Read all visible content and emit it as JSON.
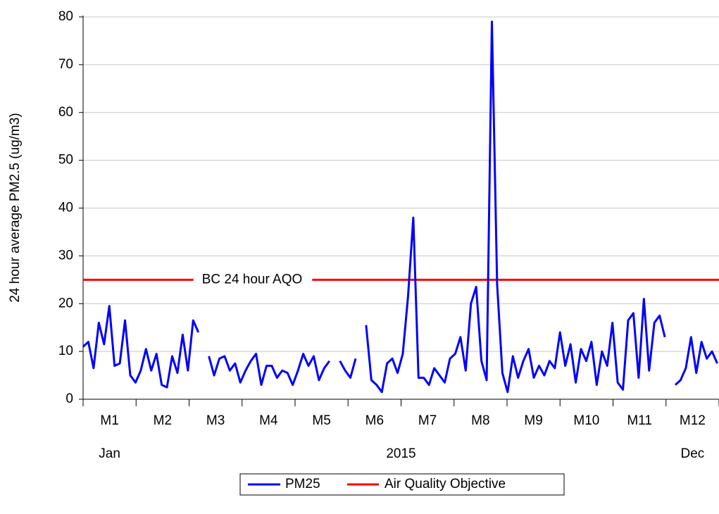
{
  "chart_data": {
    "type": "line",
    "y_axis_label": "24 hour average PM2.5 (ug/m3)",
    "x": [
      1,
      4,
      7,
      10,
      13,
      16,
      19,
      22,
      25,
      28,
      31,
      34,
      37,
      40,
      43,
      46,
      49,
      52,
      55,
      58,
      61,
      64,
      67,
      70,
      73,
      76,
      79,
      82,
      85,
      88,
      91,
      94,
      97,
      100,
      103,
      106,
      109,
      112,
      115,
      118,
      121,
      124,
      127,
      130,
      133,
      136,
      139,
      142,
      145,
      148,
      151,
      154,
      157,
      160,
      163,
      166,
      169,
      172,
      175,
      178,
      181,
      184,
      187,
      190,
      193,
      196,
      199,
      202,
      205,
      208,
      211,
      214,
      217,
      220,
      223,
      226,
      229,
      232,
      235,
      238,
      241,
      244,
      247,
      250,
      253,
      256,
      259,
      262,
      265,
      268,
      271,
      274,
      277,
      280,
      283,
      286,
      289,
      292,
      295,
      298,
      301,
      304,
      307,
      310,
      313,
      316,
      319,
      322,
      325,
      328,
      331,
      334,
      337,
      340,
      343,
      346,
      349,
      352,
      355,
      358,
      361,
      364
    ],
    "xlim": [
      1,
      365
    ],
    "month_labels": [
      "M1",
      "M2",
      "M3",
      "M4",
      "M5",
      "M6",
      "M7",
      "M8",
      "M9",
      "M10",
      "M11",
      "M12"
    ],
    "period_labels": [
      "Jan",
      "2015",
      "Dec"
    ],
    "series": [
      {
        "name": "PM25",
        "color": "#0000ff",
        "values": [
          11,
          12,
          6.5,
          16,
          11.5,
          19.5,
          7,
          7.5,
          16.5,
          5,
          3.5,
          6,
          10.5,
          6,
          9.5,
          3,
          2.5,
          9,
          5.5,
          13.5,
          6,
          16.5,
          14,
          null,
          9,
          5,
          8.5,
          9,
          6,
          7.5,
          3.5,
          6,
          8,
          9.5,
          3,
          7,
          7,
          4.5,
          6,
          5.5,
          3,
          6,
          9.5,
          7,
          9,
          4,
          6.5,
          8,
          null,
          8,
          6,
          4.5,
          8.5,
          null,
          15.5,
          4,
          3,
          1.5,
          7.5,
          8.5,
          5.5,
          9.5,
          21.5,
          38,
          4.5,
          4.5,
          3,
          6.5,
          5,
          3.5,
          8.5,
          9.5,
          13,
          6,
          20,
          23.5,
          8,
          4,
          79,
          24,
          5.5,
          1.5,
          9,
          4.5,
          8,
          10.5,
          4.5,
          7,
          5,
          8,
          6.5,
          14,
          7,
          11.5,
          3.5,
          10.5,
          8,
          12,
          3,
          10,
          7,
          16,
          3.5,
          2,
          16.5,
          18,
          4.5,
          21,
          6,
          16,
          17.5,
          13,
          null,
          3,
          4,
          6.5,
          13,
          5.5,
          12,
          8.5,
          10,
          7.5
        ]
      }
    ],
    "reference_line": {
      "name": "Air Quality Objective",
      "color": "#ff0000",
      "value": 25,
      "label": "BC 24 hour AQO"
    },
    "ylim": [
      0,
      80
    ],
    "yticks": [
      0,
      10,
      20,
      30,
      40,
      50,
      60,
      70,
      80
    ],
    "grid": true
  }
}
